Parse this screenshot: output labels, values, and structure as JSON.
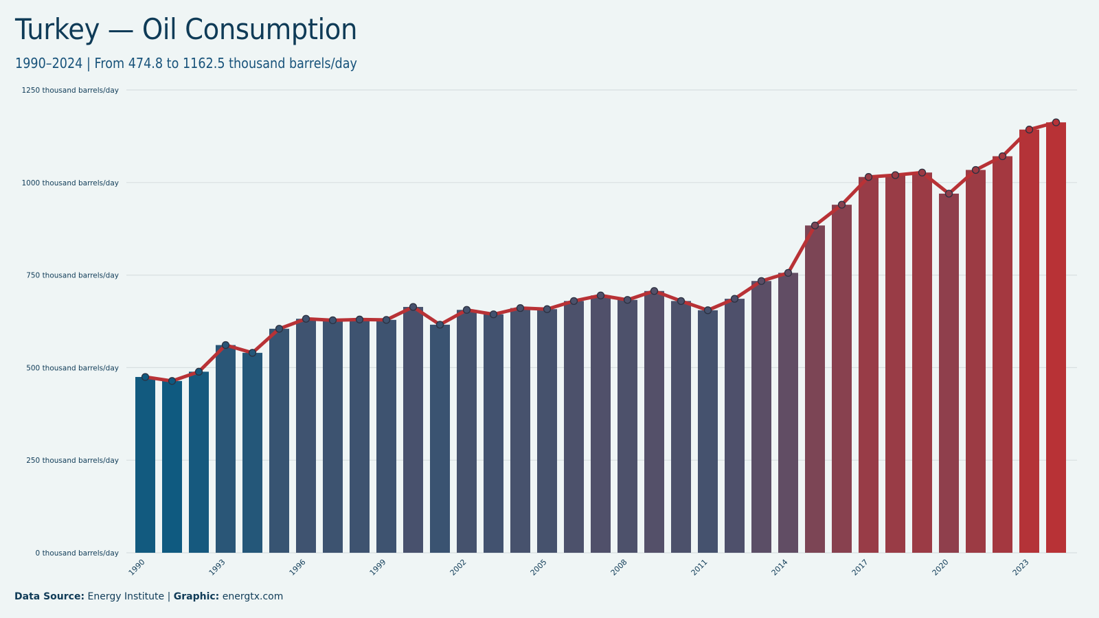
{
  "title": "Turkey — Oil Consumption",
  "subtitle": "1990–2024 | From  474.8  to  1162.5  thousand barrels/day",
  "footer": {
    "source_label": "Data Source:",
    "source_value": "Energy Institute",
    "separator": "|",
    "graphic_label": "Graphic:",
    "graphic_value": "energtx.com"
  },
  "colors": {
    "background": "#eff5f5",
    "bar_start": "#0f5a80",
    "bar_mid": "#5e4e65",
    "bar_end": "#b83236",
    "line": "#b83236",
    "grid": "#d8dfe0",
    "text": "#0f3b57"
  },
  "chart_data": {
    "type": "bar",
    "title": "Turkey — Oil Consumption",
    "unit": "thousand barrels/day",
    "x": [
      1990,
      1991,
      1992,
      1993,
      1994,
      1995,
      1996,
      1997,
      1998,
      1999,
      2000,
      2001,
      2002,
      2003,
      2004,
      2005,
      2006,
      2007,
      2008,
      2009,
      2010,
      2011,
      2012,
      2013,
      2014,
      2015,
      2016,
      2017,
      2018,
      2019,
      2020,
      2021,
      2022,
      2023,
      2024
    ],
    "values": [
      474.8,
      464,
      489,
      561,
      540,
      605,
      632,
      628,
      630,
      629,
      664,
      616,
      656,
      644,
      661,
      658,
      680,
      695,
      683,
      707,
      680,
      655,
      686,
      734,
      756,
      884,
      940,
      1015,
      1020,
      1027,
      970,
      1034,
      1071,
      1143,
      1162.5
    ],
    "x_tick_labels": [
      "1990",
      "1993",
      "1996",
      "1999",
      "2002",
      "2005",
      "2008",
      "2011",
      "2014",
      "2017",
      "2020",
      "2023"
    ],
    "y_ticks": [
      0,
      250,
      500,
      750,
      1000,
      1250
    ],
    "y_tick_labels": [
      "0 thousand barrels/day",
      "250 thousand barrels/day",
      "500 thousand barrels/day",
      "750 thousand barrels/day",
      "1000 thousand barrels/day",
      "1250 thousand barrels/day"
    ],
    "ylim": [
      0,
      1250
    ],
    "overlay": "line with markers",
    "grid": true
  }
}
